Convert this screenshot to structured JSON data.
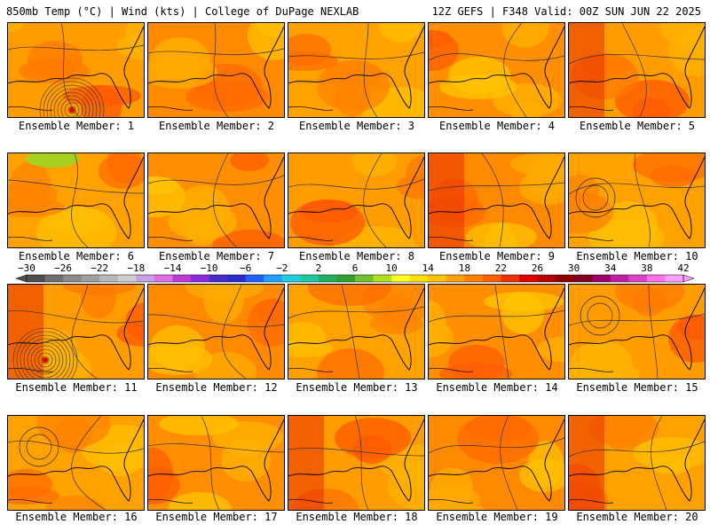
{
  "header": {
    "left": "850mb Temp (°C) | Wind (kts) | College of DuPage NEXLAB",
    "right": "12Z GEFS | F348 Valid: 00Z SUN JUN 22 2025"
  },
  "members": [
    {
      "label": "Ensemble Member: 1",
      "cyclone": true
    },
    {
      "label": "Ensemble Member: 2"
    },
    {
      "label": "Ensemble Member: 3"
    },
    {
      "label": "Ensemble Member: 4"
    },
    {
      "label": "Ensemble Member: 5"
    },
    {
      "label": "Ensemble Member: 6"
    },
    {
      "label": "Ensemble Member: 7"
    },
    {
      "label": "Ensemble Member: 8"
    },
    {
      "label": "Ensemble Member: 9"
    },
    {
      "label": "Ensemble Member: 10"
    },
    {
      "label": "Ensemble Member: 11",
      "cyclone": true
    },
    {
      "label": "Ensemble Member: 12"
    },
    {
      "label": "Ensemble Member: 13"
    },
    {
      "label": "Ensemble Member: 14"
    },
    {
      "label": "Ensemble Member: 15"
    },
    {
      "label": "Ensemble Member: 16"
    },
    {
      "label": "Ensemble Member: 17"
    },
    {
      "label": "Ensemble Member: 18"
    },
    {
      "label": "Ensemble Member: 19"
    },
    {
      "label": "Ensemble Member: 20"
    }
  ],
  "colorbar": {
    "ticks": [
      "−30",
      "−26",
      "−22",
      "−18",
      "−14",
      "−10",
      "−6",
      "−2",
      "2",
      "6",
      "10",
      "14",
      "18",
      "22",
      "26",
      "30",
      "34",
      "38",
      "42"
    ],
    "colors": [
      "#4f4f4f",
      "#6f6f6f",
      "#8a8a8a",
      "#a0a0a0",
      "#b8b8b8",
      "#cfcfcf",
      "#c7a0e6",
      "#e070e0",
      "#c03ad8",
      "#8a2be2",
      "#4b2bc9",
      "#2b2bd0",
      "#2060ff",
      "#20a0ff",
      "#20d0e0",
      "#20c8a0",
      "#20b060",
      "#30a030",
      "#70c030",
      "#b0e020",
      "#ffff20",
      "#ffe000",
      "#ffc000",
      "#ffa000",
      "#ff8000",
      "#ff6000",
      "#f03000",
      "#e00000",
      "#b80000",
      "#900000",
      "#800020",
      "#a0006a",
      "#c020a0",
      "#e040c8",
      "#ff70e8",
      "#ffa0ff"
    ]
  }
}
